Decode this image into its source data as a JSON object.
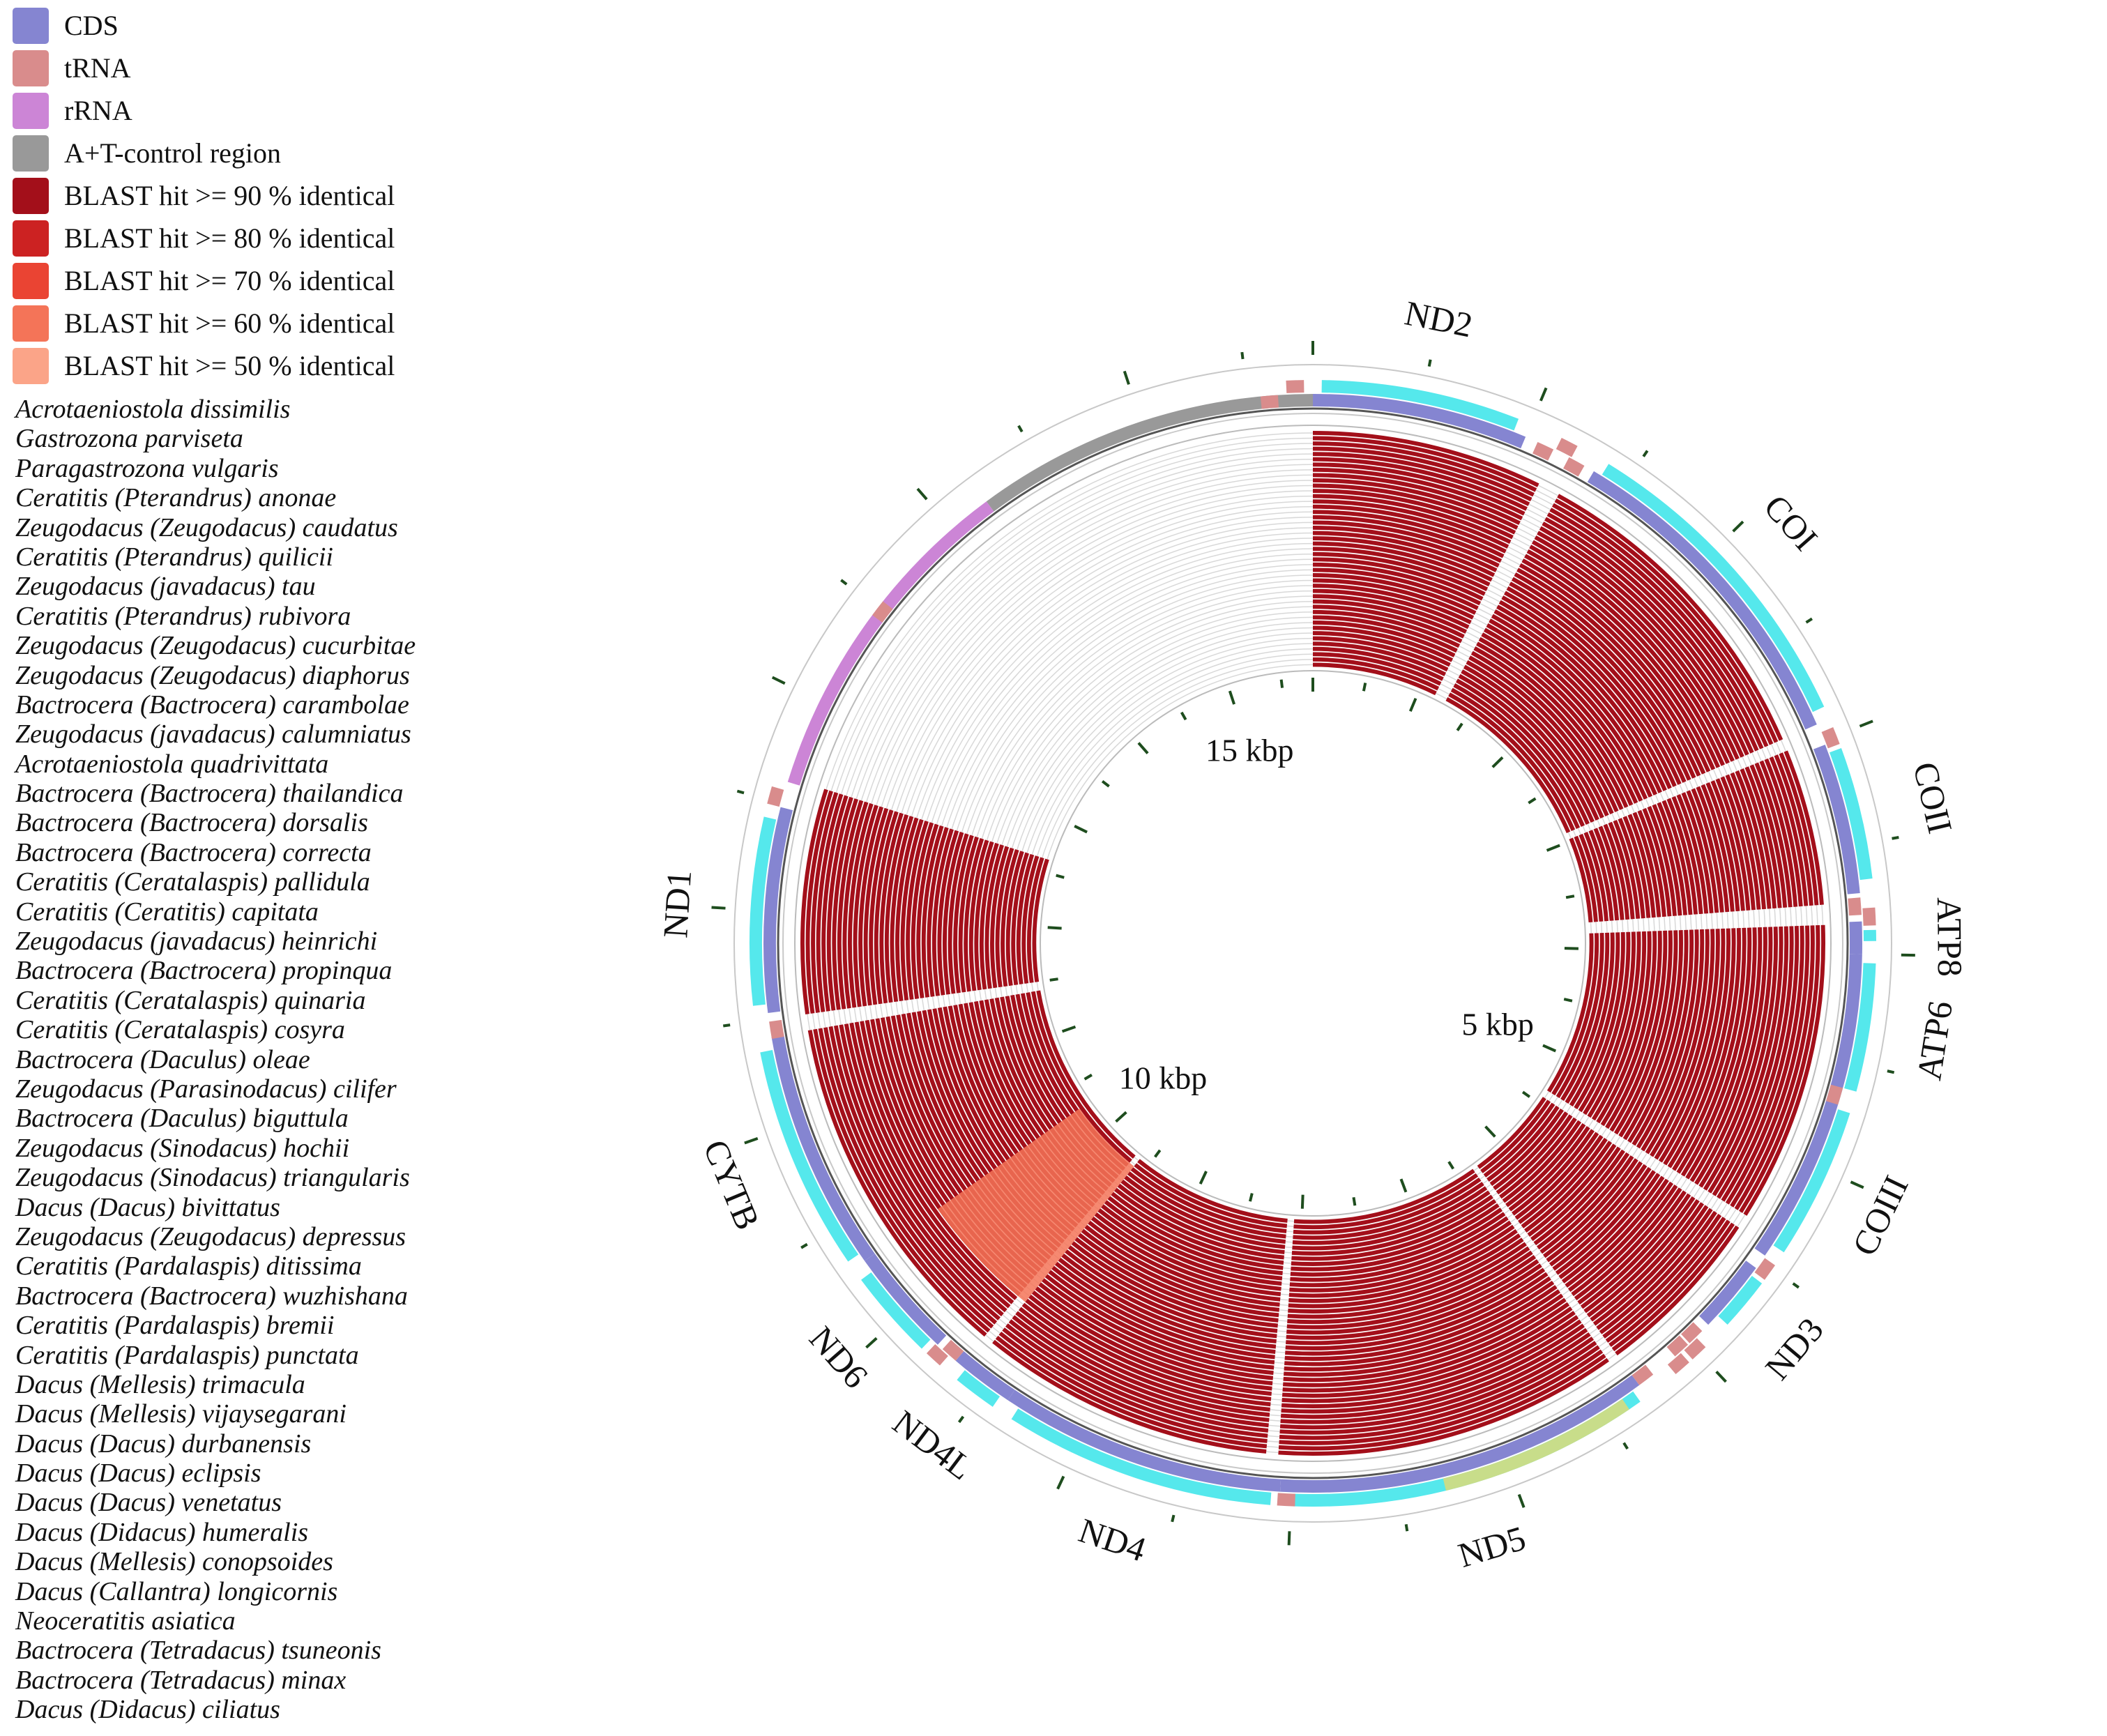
{
  "legend": [
    {
      "label": "CDS",
      "color": "#8585d1"
    },
    {
      "label": "tRNA",
      "color": "#d98c8c"
    },
    {
      "label": "rRNA",
      "color": "#cc85d6"
    },
    {
      "label": "A+T-control region",
      "color": "#999999"
    },
    {
      "label": "BLAST hit >= 90 % identical",
      "color": "#a30f1a"
    },
    {
      "label": "BLAST hit >= 80 % identical",
      "color": "#cc2222"
    },
    {
      "label": "BLAST hit >= 70 % identical",
      "color": "#ea4433"
    },
    {
      "label": "BLAST hit >= 60 % identical",
      "color": "#f47458"
    },
    {
      "label": "BLAST hit >= 50 % identical",
      "color": "#fba488"
    }
  ],
  "species": [
    "Acrotaeniostola dissimilis",
    "Gastrozona parviseta",
    "Paragastrozona vulgaris",
    "Ceratitis (Pterandrus) anonae",
    "Zeugodacus (Zeugodacus) caudatus",
    "Ceratitis (Pterandrus) quilicii",
    "Zeugodacus (javadacus) tau",
    "Ceratitis (Pterandrus) rubivora",
    "Zeugodacus (Zeugodacus) cucurbitae",
    "Zeugodacus (Zeugodacus) diaphorus",
    "Bactrocera (Bactrocera) carambolae",
    "Zeugodacus (javadacus) calumniatus",
    "Acrotaeniostola quadrivittata",
    "Bactrocera (Bactrocera) thailandica",
    "Bactrocera (Bactrocera) dorsalis",
    "Bactrocera (Bactrocera) correcta",
    "Ceratitis (Ceratalaspis) pallidula",
    "Ceratitis (Ceratitis) capitata",
    "Zeugodacus (javadacus) heinrichi",
    "Bactrocera (Bactrocera) propinqua",
    "Ceratitis (Ceratalaspis) quinaria",
    "Ceratitis (Ceratalaspis) cosyra",
    "Bactrocera (Daculus) oleae",
    "Zeugodacus (Parasinodacus) cilifer",
    "Bactrocera (Daculus) biguttula",
    "Zeugodacus (Sinodacus) hochii",
    "Zeugodacus (Sinodacus) triangularis",
    "Dacus (Dacus) bivittatus",
    "Zeugodacus (Zeugodacus) depressus",
    "Ceratitis (Pardalaspis) ditissima",
    "Bactrocera (Bactrocera) wuzhishana",
    "Ceratitis (Pardalaspis) bremii",
    "Ceratitis (Pardalaspis) punctata",
    "Dacus (Mellesis) trimacula",
    "Dacus (Mellesis) vijaysegarani",
    "Dacus (Dacus) durbanensis",
    "Dacus (Dacus) eclipsis",
    "Dacus (Dacus) venetatus",
    "Dacus (Didacus) humeralis",
    "Dacus (Mellesis) conopsoides",
    "Dacus (Callantra) longicornis",
    "Neoceratitis asiatica",
    "Bactrocera (Tetradacus) tsuneonis",
    "Bactrocera (Tetradacus) minax",
    "Dacus (Didacus) ciliatus"
  ],
  "genome": {
    "length_bp": 15800,
    "scale_labels": [
      {
        "text": "5 kbp",
        "position_bp": 5000
      },
      {
        "text": "10 kbp",
        "position_bp": 10000
      },
      {
        "text": "15 kbp",
        "position_bp": 15000
      }
    ],
    "genes": [
      {
        "name": "ND2",
        "type": "CDS",
        "start": 0,
        "end": 1000,
        "strand": "+"
      },
      {
        "name": "COI",
        "type": "CDS",
        "start": 1350,
        "end": 2920,
        "strand": "+"
      },
      {
        "name": "COII",
        "type": "CDS",
        "start": 3020,
        "end": 3720,
        "strand": "+"
      },
      {
        "name": "ATP8",
        "type": "CDS",
        "start": 3850,
        "end": 4000,
        "strand": "+"
      },
      {
        "name": "ATP6",
        "type": "CDS",
        "start": 4000,
        "end": 4680,
        "strand": "+"
      },
      {
        "name": "COIII",
        "type": "CDS",
        "start": 4680,
        "end": 5470,
        "strand": "+"
      },
      {
        "name": "ND3",
        "type": "CDS",
        "start": 5540,
        "end": 5880,
        "strand": "+"
      },
      {
        "name": "ND5",
        "type": "CDS",
        "start": 6300,
        "end": 8050,
        "strand": "-"
      },
      {
        "name": "ND4",
        "type": "CDS",
        "start": 8050,
        "end": 9380,
        "strand": "-"
      },
      {
        "name": "ND4L",
        "type": "CDS",
        "start": 9380,
        "end": 9680,
        "strand": "-"
      },
      {
        "name": "ND6",
        "type": "CDS",
        "start": 9790,
        "end": 10300,
        "strand": "+"
      },
      {
        "name": "CYTB",
        "type": "CDS",
        "start": 10300,
        "end": 11420,
        "strand": "+"
      },
      {
        "name": "ND1",
        "type": "CDS",
        "start": 11530,
        "end": 12480,
        "strand": "-"
      }
    ],
    "rrna": [
      {
        "name": "rRNA",
        "start": 12600,
        "end": 14200
      }
    ],
    "control_region": [
      {
        "name": "A+T-control region",
        "start": 14200,
        "end": 15800
      }
    ],
    "trna_positions": [
      15600,
      15720,
      1100,
      1190,
      1260,
      3000,
      3780,
      3830,
      4660,
      5520,
      5960,
      6000,
      6050,
      6100,
      6260,
      8020,
      9720,
      9760,
      11450,
      12520,
      13500
    ],
    "blast_blocks": [
      {
        "start": 0,
        "end": 1150,
        "identity": 90
      },
      {
        "start": 1260,
        "end": 2920,
        "identity": 90
      },
      {
        "start": 2980,
        "end": 3760,
        "identity": 90
      },
      {
        "start": 3860,
        "end": 5360,
        "identity": 90
      },
      {
        "start": 5430,
        "end": 6300,
        "identity": 90
      },
      {
        "start": 6350,
        "end": 8070,
        "identity": 90
      },
      {
        "start": 8130,
        "end": 9600,
        "identity": 90
      },
      {
        "start": 9650,
        "end": 11420,
        "identity": 90
      },
      {
        "start": 11500,
        "end": 12620,
        "identity": 90
      }
    ],
    "low_identity_bands": [
      {
        "start": 9600,
        "end": 10300,
        "identity": 60
      }
    ]
  }
}
